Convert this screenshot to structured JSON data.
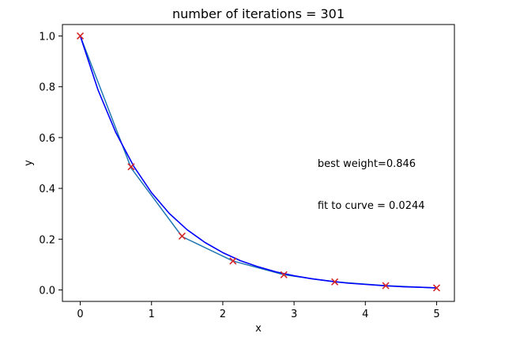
{
  "chart_data": {
    "type": "line",
    "title": "number of iterations = 301",
    "xlabel": "x",
    "ylabel": "y",
    "xlim": [
      -0.25,
      5.25
    ],
    "ylim": [
      -0.045,
      1.045
    ],
    "xticks": [
      0,
      1,
      2,
      3,
      4,
      5
    ],
    "yticks": [
      0.0,
      0.2,
      0.4,
      0.6,
      0.8,
      1.0
    ],
    "xtick_labels": [
      "0",
      "1",
      "2",
      "3",
      "4",
      "5"
    ],
    "ytick_labels": [
      "0.0",
      "0.2",
      "0.4",
      "0.6",
      "0.8",
      "1.0"
    ],
    "grid": false,
    "series": [
      {
        "kind": "line",
        "color": "#1f77b4",
        "x": [
          0,
          0.714,
          1.429,
          2.143,
          2.857,
          3.571,
          4.286,
          5.0
        ],
        "y": [
          1.0,
          0.48,
          0.21,
          0.114,
          0.06,
          0.032,
          0.017,
          0.008
        ]
      },
      {
        "kind": "scatter",
        "marker": "x",
        "color": "#d62728",
        "x": [
          0,
          0.714,
          1.429,
          2.143,
          2.857,
          3.571,
          4.286,
          5.0
        ],
        "y": [
          1.0,
          0.485,
          0.212,
          0.114,
          0.06,
          0.032,
          0.017,
          0.008
        ]
      },
      {
        "kind": "curve",
        "color": "#0000ff",
        "x": [
          0,
          0.25,
          0.5,
          0.75,
          1.0,
          1.25,
          1.5,
          1.75,
          2.0,
          2.25,
          2.5,
          2.75,
          3.0,
          3.25,
          3.5,
          3.75,
          4.0,
          4.25,
          4.5,
          4.75,
          5.0
        ],
        "y": [
          1.0,
          0.787,
          0.619,
          0.487,
          0.383,
          0.301,
          0.237,
          0.187,
          0.147,
          0.115,
          0.091,
          0.071,
          0.056,
          0.044,
          0.035,
          0.027,
          0.022,
          0.017,
          0.013,
          0.011,
          0.008
        ]
      }
    ],
    "annotations": [
      {
        "text": "best weight=0.846",
        "x": 3.33,
        "y": 0.5
      },
      {
        "text": "fit to curve = 0.0244",
        "x": 3.33,
        "y": 0.335
      }
    ]
  }
}
